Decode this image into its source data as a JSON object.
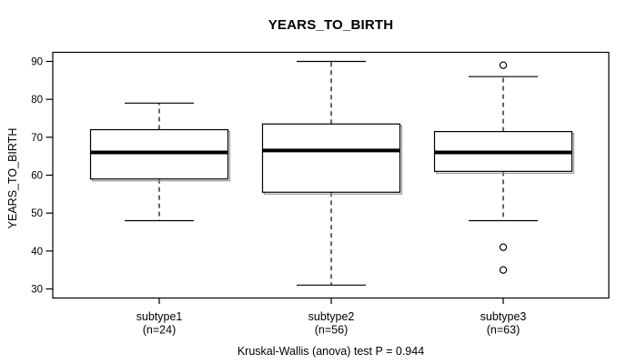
{
  "colors": {
    "foreground": "#000000",
    "background": "#ffffff",
    "box_fill": "#ffffff",
    "box_shadow": "#999999"
  },
  "chart_data": {
    "type": "boxplot",
    "title": "YEARS_TO_BIRTH",
    "ylabel": "YEARS_TO_BIRTH",
    "xlabel": "",
    "annotation": "Kruskal-Wallis (anova) test P = 0.944",
    "ylim": [
      27.6,
      92.4
    ],
    "yticks": [
      30,
      40,
      50,
      60,
      70,
      80,
      90
    ],
    "grid": false,
    "legend_position": "none",
    "categories": [
      "subtype1",
      "subtype2",
      "subtype3"
    ],
    "groups": [
      {
        "label": "subtype1",
        "sublabel": "(n=24)",
        "n": 24,
        "whisker_low": 48,
        "q1": 59,
        "median": 66,
        "q3": 72,
        "whisker_high": 79,
        "outliers": []
      },
      {
        "label": "subtype2",
        "sublabel": "(n=56)",
        "n": 56,
        "whisker_low": 31,
        "q1": 55.5,
        "median": 66.5,
        "q3": 73.5,
        "whisker_high": 90,
        "outliers": []
      },
      {
        "label": "subtype3",
        "sublabel": "(n=63)",
        "n": 63,
        "whisker_low": 48,
        "q1": 61,
        "median": 66,
        "q3": 71.5,
        "whisker_high": 86,
        "outliers": [
          89,
          41,
          35
        ]
      }
    ]
  }
}
